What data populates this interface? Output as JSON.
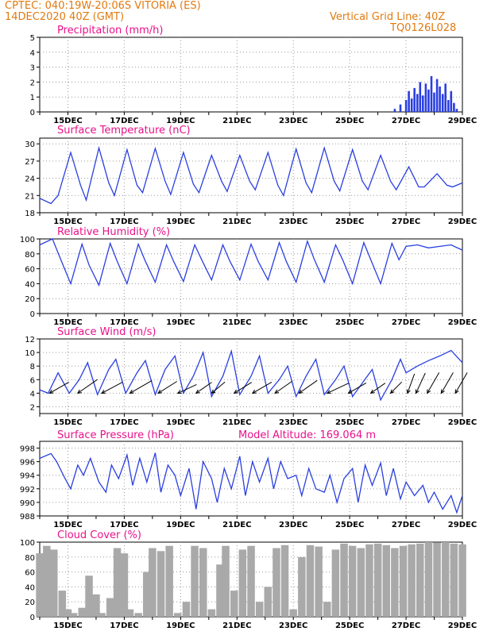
{
  "header": {
    "line1": "CPTEC:  040:19W-20:06S  VITORIA (ES)",
    "line2": "14DEC2020 40Z (GMT)",
    "grid_note": "Vertical Grid Line: 40Z",
    "code": "TQ0126L028"
  },
  "colors": {
    "series": "#2a3fe0",
    "cloud": "#a9a9a9",
    "header": "#e07a10",
    "title": "#e8128a"
  },
  "x_axis": {
    "labels": [
      "15DEC",
      "17DEC",
      "19DEC",
      "21DEC",
      "23DEC",
      "25DEC",
      "27DEC",
      "29DEC"
    ],
    "start_day": 14,
    "end_day": 29
  },
  "chart_data": [
    {
      "type": "bar",
      "title": "Precipitation (mm/h)",
      "ylim": [
        0,
        5
      ],
      "yticks": [
        0,
        1,
        2,
        3,
        4,
        5
      ],
      "x": [
        26.6,
        26.8,
        27.0,
        27.1,
        27.2,
        27.3,
        27.4,
        27.5,
        27.6,
        27.7,
        27.8,
        27.9,
        28.0,
        28.1,
        28.2,
        28.3,
        28.4,
        28.5,
        28.6,
        28.7,
        28.8
      ],
      "values": [
        0.2,
        0.5,
        0.8,
        1.4,
        0.9,
        1.6,
        1.2,
        2.0,
        1.1,
        1.9,
        1.5,
        2.4,
        1.3,
        2.2,
        1.7,
        1.2,
        1.9,
        0.8,
        1.4,
        0.6,
        0.2
      ]
    },
    {
      "type": "line",
      "title": "Surface Temperature (nC)",
      "ylim": [
        18,
        31
      ],
      "yticks": [
        18,
        21,
        24,
        27,
        30
      ],
      "x": [
        14.0,
        14.4,
        14.65,
        15.1,
        15.45,
        15.65,
        16.1,
        16.45,
        16.65,
        17.1,
        17.45,
        17.65,
        18.1,
        18.45,
        18.65,
        19.1,
        19.45,
        19.65,
        20.1,
        20.45,
        20.65,
        21.1,
        21.45,
        21.65,
        22.1,
        22.45,
        22.65,
        23.1,
        23.45,
        23.65,
        24.1,
        24.45,
        24.65,
        25.1,
        25.45,
        25.65,
        26.1,
        26.45,
        26.65,
        27.1,
        27.45,
        27.65,
        28.1,
        28.45,
        28.65,
        29.0
      ],
      "values": [
        20.5,
        19.6,
        21.0,
        28.5,
        22.8,
        20.2,
        29.3,
        23.2,
        21.0,
        29.0,
        22.8,
        21.5,
        29.2,
        23.5,
        21.2,
        28.5,
        23.0,
        21.5,
        28.0,
        23.5,
        21.7,
        28.0,
        23.5,
        22.0,
        28.5,
        22.8,
        21.0,
        29.1,
        23.2,
        21.5,
        29.3,
        23.5,
        21.8,
        29.0,
        23.5,
        22.0,
        28.0,
        23.5,
        22.0,
        26.0,
        22.5,
        22.5,
        24.8,
        22.8,
        22.5,
        23.2
      ]
    },
    {
      "type": "line",
      "title": "Relative Humidity (%)",
      "ylim": [
        0,
        100
      ],
      "yticks": [
        0,
        20,
        40,
        60,
        80,
        100
      ],
      "x": [
        14.0,
        14.45,
        14.75,
        15.1,
        15.5,
        15.75,
        16.1,
        16.5,
        16.75,
        17.1,
        17.5,
        17.75,
        18.1,
        18.5,
        18.75,
        19.1,
        19.5,
        19.75,
        20.1,
        20.5,
        20.75,
        21.1,
        21.5,
        21.75,
        22.1,
        22.5,
        22.75,
        23.1,
        23.5,
        23.75,
        24.1,
        24.5,
        24.75,
        25.1,
        25.5,
        25.75,
        26.1,
        26.5,
        26.75,
        27.0,
        27.4,
        27.8,
        28.2,
        28.6,
        29.0
      ],
      "values": [
        92,
        100,
        72,
        40,
        93,
        65,
        38,
        94,
        70,
        40,
        93,
        70,
        42,
        92,
        70,
        43,
        92,
        72,
        45,
        92,
        70,
        45,
        93,
        70,
        45,
        95,
        70,
        42,
        97,
        72,
        42,
        92,
        72,
        40,
        95,
        72,
        40,
        94,
        72,
        90,
        92,
        88,
        90,
        92,
        85
      ]
    },
    {
      "type": "line",
      "title": "Surface Wind (m/s)",
      "ylim": [
        1,
        12
      ],
      "yticks": [
        2,
        4,
        6,
        8,
        10,
        12
      ],
      "x": [
        14.0,
        14.3,
        14.65,
        15.05,
        15.4,
        15.7,
        16.05,
        16.45,
        16.7,
        17.05,
        17.45,
        17.75,
        18.1,
        18.45,
        18.8,
        19.1,
        19.45,
        19.8,
        20.1,
        20.5,
        20.8,
        21.1,
        21.5,
        21.8,
        22.1,
        22.5,
        22.8,
        23.1,
        23.45,
        23.8,
        24.1,
        24.5,
        24.8,
        25.1,
        25.45,
        25.8,
        26.1,
        26.5,
        26.8,
        27.0,
        27.4,
        27.8,
        28.2,
        28.6,
        29.0
      ],
      "values": [
        4.5,
        4.0,
        7.0,
        4.0,
        6.0,
        8.5,
        3.8,
        7.5,
        9.0,
        4.0,
        7.0,
        8.8,
        3.8,
        7.5,
        9.5,
        4.0,
        6.5,
        10.0,
        3.5,
        6.5,
        10.2,
        3.8,
        6.5,
        9.5,
        4.0,
        6.0,
        8.0,
        3.5,
        6.5,
        9.0,
        3.8,
        6.0,
        8.0,
        3.5,
        5.5,
        7.5,
        3.0,
        6.0,
        9.0,
        7.0,
        8.0,
        8.8,
        9.5,
        10.3,
        8.5
      ],
      "arrows": {
        "x": [
          14.35,
          15.35,
          16.2,
          17.2,
          18.2,
          18.9,
          19.55,
          20.1,
          20.9,
          21.55,
          22.35,
          23.2,
          24.2,
          24.95,
          25.75,
          26.45,
          27.05,
          27.35,
          27.75,
          28.25,
          28.75
        ],
        "dir_deg": [
          60,
          55,
          62,
          60,
          58,
          65,
          55,
          50,
          58,
          60,
          55,
          55,
          65,
          60,
          55,
          45,
          20,
          25,
          30,
          30,
          30
        ],
        "len": [
          28,
          30,
          30,
          32,
          28,
          26,
          24,
          22,
          26,
          28,
          26,
          28,
          30,
          26,
          22,
          20,
          26,
          28,
          30,
          30,
          30
        ]
      }
    },
    {
      "type": "line",
      "title": "Surface Pressure (hPa)",
      "ylim": [
        988,
        999
      ],
      "yticks": [
        988,
        990,
        992,
        994,
        996,
        998
      ],
      "x": [
        14.0,
        14.4,
        14.6,
        14.9,
        15.1,
        15.35,
        15.55,
        15.8,
        16.1,
        16.35,
        16.55,
        16.8,
        17.1,
        17.3,
        17.55,
        17.8,
        18.1,
        18.3,
        18.55,
        18.8,
        19.0,
        19.3,
        19.55,
        19.8,
        20.1,
        20.3,
        20.55,
        20.8,
        21.1,
        21.3,
        21.55,
        21.8,
        22.1,
        22.3,
        22.55,
        22.8,
        23.1,
        23.3,
        23.55,
        23.8,
        24.1,
        24.3,
        24.55,
        24.8,
        25.1,
        25.3,
        25.55,
        25.8,
        26.1,
        26.3,
        26.55,
        26.8,
        27.0,
        27.3,
        27.6,
        27.8,
        28.0,
        28.3,
        28.6,
        28.8,
        29.0
      ],
      "values": [
        996.5,
        997.2,
        996.0,
        993.5,
        992.0,
        995.5,
        994.0,
        996.5,
        993.0,
        991.5,
        995.5,
        993.5,
        997.0,
        992.5,
        996.5,
        993.0,
        997.3,
        991.5,
        995.5,
        994.0,
        991.0,
        995.0,
        989.0,
        996.0,
        993.5,
        990.0,
        995.0,
        992.0,
        996.8,
        991.0,
        996.0,
        993.0,
        996.5,
        992.0,
        996.0,
        993.5,
        994.0,
        991.0,
        995.0,
        992.0,
        991.5,
        994.0,
        990.0,
        993.5,
        995.0,
        990.0,
        995.5,
        992.5,
        995.8,
        991.0,
        995.0,
        990.5,
        993.0,
        991.0,
        992.5,
        990.0,
        991.5,
        989.0,
        991.0,
        988.5,
        991.0
      ]
    },
    {
      "type": "bar",
      "title": "Cloud Cover (%)",
      "ylim": [
        0,
        100
      ],
      "yticks": [
        0,
        20,
        40,
        60,
        80,
        100
      ],
      "x": [
        14.0,
        14.25,
        14.5,
        14.8,
        15.0,
        15.2,
        15.5,
        15.75,
        16.0,
        16.2,
        16.5,
        16.75,
        17.0,
        17.2,
        17.5,
        17.8,
        18.0,
        18.3,
        18.6,
        18.9,
        19.2,
        19.5,
        19.8,
        20.1,
        20.4,
        20.6,
        20.9,
        21.2,
        21.5,
        21.8,
        22.1,
        22.4,
        22.7,
        23.0,
        23.3,
        23.6,
        23.9,
        24.2,
        24.5,
        24.8,
        25.1,
        25.4,
        25.7,
        26.0,
        26.3,
        26.6,
        26.9,
        27.2,
        27.5,
        27.8,
        28.1,
        28.4,
        28.7,
        29.0
      ],
      "values": [
        85,
        95,
        90,
        35,
        10,
        5,
        12,
        55,
        30,
        5,
        25,
        92,
        85,
        10,
        5,
        60,
        92,
        88,
        95,
        5,
        20,
        95,
        92,
        10,
        70,
        95,
        35,
        90,
        95,
        20,
        40,
        92,
        96,
        10,
        80,
        96,
        94,
        20,
        90,
        98,
        95,
        92,
        97,
        98,
        96,
        92,
        95,
        97,
        98,
        100,
        99,
        100,
        98,
        97
      ]
    }
  ],
  "model_altitude": "Model Altitude: 169.064 m"
}
